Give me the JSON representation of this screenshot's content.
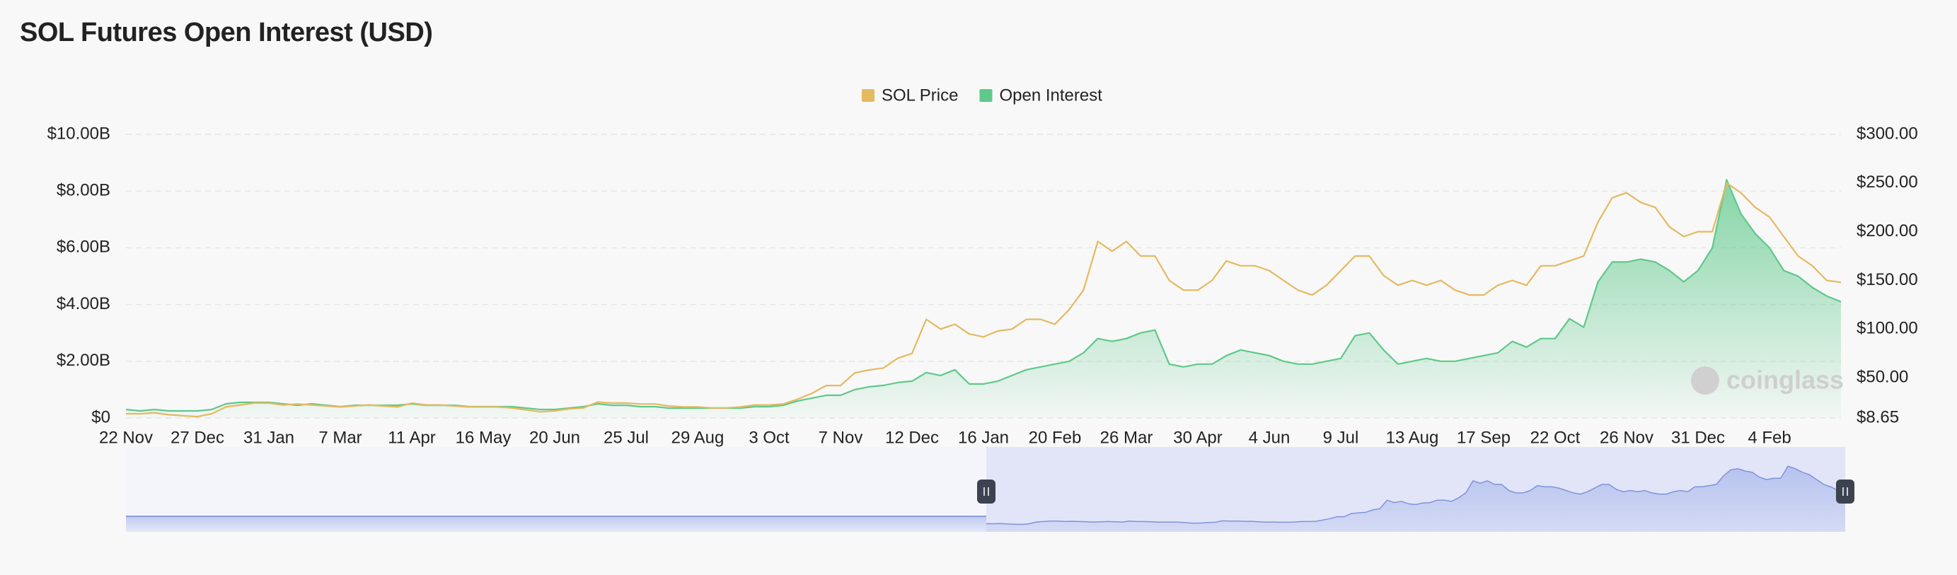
{
  "chart_data": {
    "type": "line",
    "title": "SOL Futures Open Interest (USD)",
    "watermark": "coinglass",
    "legend": "top",
    "grid": true,
    "categories": [
      "22 Nov",
      null,
      null,
      null,
      null,
      "27 Dec",
      null,
      null,
      null,
      null,
      "31 Jan",
      null,
      null,
      null,
      null,
      "7 Mar",
      null,
      null,
      null,
      null,
      "11 Apr",
      null,
      null,
      null,
      null,
      "16 May",
      null,
      null,
      null,
      null,
      "20 Jun",
      null,
      null,
      null,
      null,
      "25 Jul",
      null,
      null,
      null,
      null,
      "29 Aug",
      null,
      null,
      null,
      null,
      "3 Oct",
      null,
      null,
      null,
      null,
      "7 Nov",
      null,
      null,
      null,
      null,
      "12 Dec",
      null,
      null,
      null,
      null,
      "16 Jan",
      null,
      null,
      null,
      null,
      "20 Feb",
      null,
      null,
      null,
      null,
      "26 Mar",
      null,
      null,
      null,
      null,
      "30 Apr",
      null,
      null,
      null,
      null,
      "4 Jun",
      null,
      null,
      null,
      null,
      "9 Jul",
      null,
      null,
      null,
      null,
      "13 Aug",
      null,
      null,
      null,
      null,
      "17 Sep",
      null,
      null,
      null,
      null,
      "22 Oct",
      null,
      null,
      null,
      null,
      "26 Nov",
      null,
      null,
      null,
      null,
      "31 Dec",
      null,
      null,
      null,
      null,
      "4 Feb",
      null,
      null,
      null,
      null,
      null
    ],
    "series": [
      {
        "name": "SOL Price",
        "color": "#e5b95f",
        "axis": "y2",
        "area": false,
        "values": [
          13,
          13,
          14,
          12,
          11,
          10,
          13,
          20,
          22,
          24,
          24,
          22,
          23,
          22,
          21,
          20,
          21,
          22,
          21,
          20,
          24,
          22,
          22,
          21,
          20,
          20,
          20,
          19,
          17,
          15,
          16,
          18,
          19,
          25,
          24,
          24,
          23,
          23,
          21,
          20,
          20,
          19,
          19,
          20,
          22,
          22,
          23,
          28,
          34,
          42,
          42,
          55,
          58,
          60,
          70,
          75,
          110,
          100,
          105,
          95,
          92,
          98,
          100,
          110,
          110,
          105,
          120,
          140,
          190,
          180,
          190,
          175,
          175,
          150,
          140,
          140,
          150,
          170,
          165,
          165,
          160,
          150,
          140,
          135,
          145,
          160,
          175,
          175,
          155,
          145,
          150,
          145,
          150,
          140,
          135,
          135,
          145,
          150,
          145,
          165,
          165,
          170,
          175,
          210,
          235,
          240,
          230,
          225,
          205,
          195,
          200,
          200,
          250,
          240,
          225,
          215,
          195,
          175,
          165,
          150,
          148
        ]
      },
      {
        "name": "Open Interest",
        "color": "#5ec98a",
        "axis": "y",
        "area": true,
        "values": [
          0.3,
          0.25,
          0.3,
          0.25,
          0.25,
          0.25,
          0.3,
          0.5,
          0.55,
          0.55,
          0.55,
          0.5,
          0.45,
          0.5,
          0.45,
          0.4,
          0.45,
          0.45,
          0.45,
          0.45,
          0.5,
          0.45,
          0.45,
          0.45,
          0.4,
          0.4,
          0.4,
          0.4,
          0.35,
          0.3,
          0.3,
          0.35,
          0.4,
          0.5,
          0.45,
          0.45,
          0.4,
          0.4,
          0.35,
          0.35,
          0.35,
          0.35,
          0.35,
          0.35,
          0.4,
          0.4,
          0.45,
          0.6,
          0.7,
          0.8,
          0.8,
          1.0,
          1.1,
          1.15,
          1.25,
          1.3,
          1.6,
          1.5,
          1.7,
          1.2,
          1.2,
          1.3,
          1.5,
          1.7,
          1.8,
          1.9,
          2.0,
          2.3,
          2.8,
          2.7,
          2.8,
          3.0,
          3.1,
          1.9,
          1.8,
          1.9,
          1.9,
          2.2,
          2.4,
          2.3,
          2.2,
          2.0,
          1.9,
          1.9,
          2.0,
          2.1,
          2.9,
          3.0,
          2.4,
          1.9,
          2.0,
          2.1,
          2.0,
          2.0,
          2.1,
          2.2,
          2.3,
          2.7,
          2.5,
          2.8,
          2.8,
          3.5,
          3.2,
          4.8,
          5.5,
          5.5,
          5.6,
          5.5,
          5.2,
          4.8,
          5.2,
          6.0,
          8.4,
          7.2,
          6.5,
          6.0,
          5.2,
          5.0,
          4.6,
          4.3,
          4.1
        ]
      }
    ],
    "ylim": [
      0,
      10
    ],
    "yticks": [
      {
        "value": 0,
        "label": "$0"
      },
      {
        "value": 2,
        "label": "$2.00B"
      },
      {
        "value": 4,
        "label": "$4.00B"
      },
      {
        "value": 6,
        "label": "$6.00B"
      },
      {
        "value": 8,
        "label": "$8.00B"
      },
      {
        "value": 10,
        "label": "$10.00B"
      }
    ],
    "y2lim": [
      8.65,
      300
    ],
    "y2ticks": [
      {
        "value": 8.65,
        "label": "$8.65"
      },
      {
        "value": 50,
        "label": "$50.00"
      },
      {
        "value": 100,
        "label": "$100.00"
      },
      {
        "value": 150,
        "label": "$150.00"
      },
      {
        "value": 200,
        "label": "$200.00"
      },
      {
        "value": 250,
        "label": "$250.00"
      },
      {
        "value": 300,
        "label": "$300.00"
      }
    ]
  }
}
